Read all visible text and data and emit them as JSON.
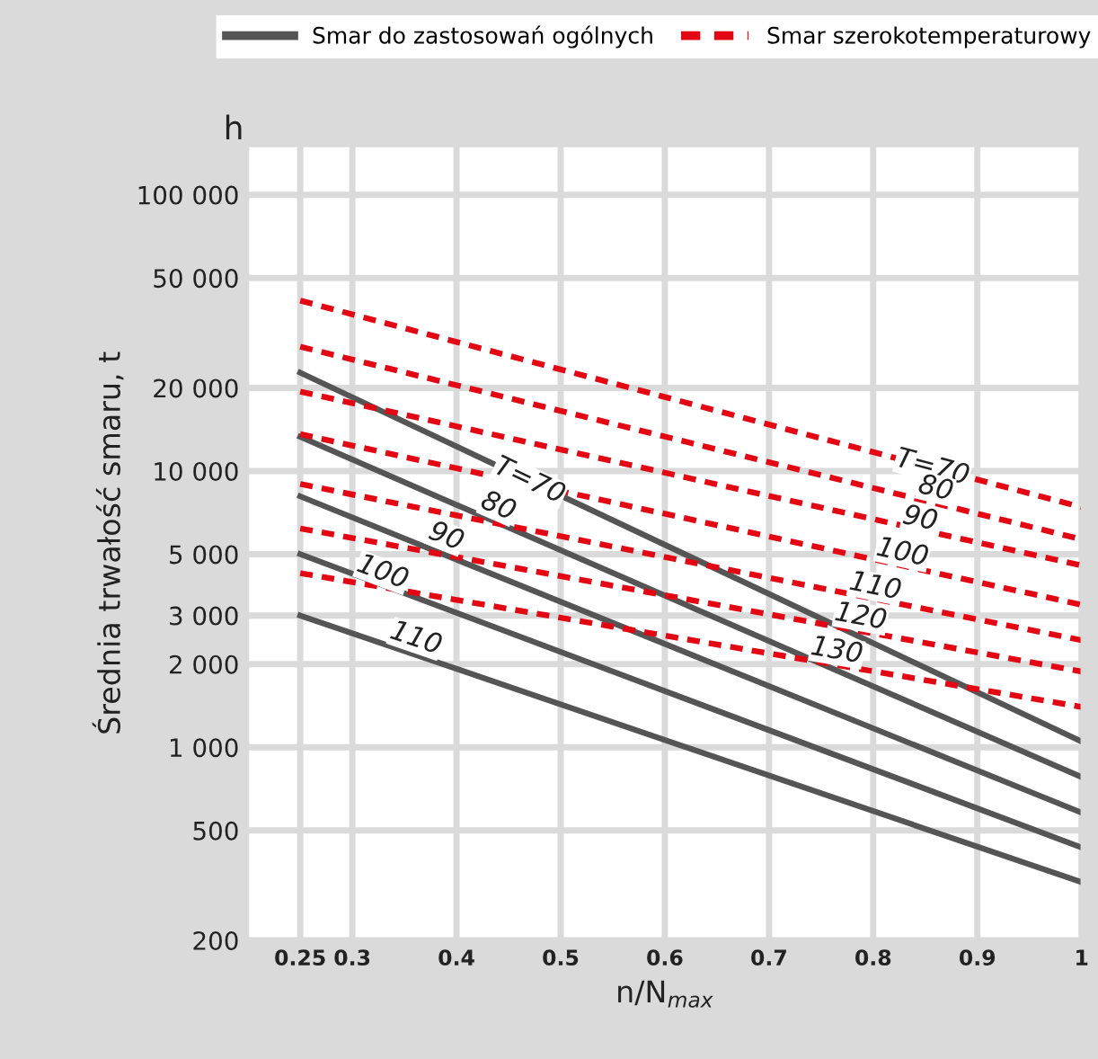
{
  "chart_data": {
    "type": "line",
    "xlabel": "n/N$_{max}$",
    "ylabel": "Średnia trwałość smaru, t",
    "log": "y",
    "grid": true,
    "legend": "top",
    "xlim": [
      0.2,
      1
    ],
    "x": [
      0.25,
      1
    ],
    "ylim": [
      200,
      150000
    ],
    "xticks": [
      0.25,
      0.3,
      0.4,
      0.5,
      0.6,
      0.7,
      0.8,
      0.9,
      1
    ],
    "yticks": [
      {
        "value": 200,
        "label": "200"
      },
      {
        "value": 500,
        "label": "500"
      },
      {
        "value": 1000,
        "label": "1 000"
      },
      {
        "value": 2000,
        "label": "2 000"
      },
      {
        "value": 3000,
        "label": "3 000"
      },
      {
        "value": 5000,
        "label": "5 000"
      },
      {
        "value": 10000,
        "label": "10 000"
      },
      {
        "value": 20000,
        "label": "20 000"
      },
      {
        "value": 50000,
        "label": "50 000"
      },
      {
        "value": 100000,
        "label": "100 000"
      }
    ],
    "series": [
      {
        "name": "Smar do zastosowań ogólnych",
        "color": "#555555",
        "line_style": "solid",
        "values": [
          22700,
          1050
        ]
      },
      {
        "color": "#555555",
        "line_style": "solid",
        "values": [
          13300,
          780
        ]
      },
      {
        "color": "#555555",
        "line_style": "solid",
        "values": [
          8100,
          580
        ]
      },
      {
        "color": "#555555",
        "line_style": "solid",
        "values": [
          5000,
          434
        ]
      },
      {
        "color": "#555555",
        "line_style": "solid",
        "values": [
          3000,
          325
        ]
      },
      {
        "name": "Smar szerokotemperaturowy",
        "color": "#e30613",
        "line_style": "dashed",
        "values": [
          41400,
          7400
        ]
      },
      {
        "color": "#e30613",
        "line_style": "dashed",
        "values": [
          28200,
          5660
        ]
      },
      {
        "color": "#e30613",
        "line_style": "dashed",
        "values": [
          19400,
          4550
        ]
      },
      {
        "color": "#e30613",
        "line_style": "dashed",
        "values": [
          13600,
          3280
        ]
      },
      {
        "color": "#e30613",
        "line_style": "dashed",
        "values": [
          8970,
          2440
        ]
      },
      {
        "color": "#e30613",
        "line_style": "dashed",
        "values": [
          6200,
          1880
        ]
      },
      {
        "color": "#e30613",
        "line_style": "dashed",
        "values": [
          4270,
          1400
        ]
      }
    ],
    "annotations": [
      "h",
      {
        "text": "T=70",
        "x": 0.47,
        "y": 9200
      },
      {
        "text": "80",
        "x": 0.44,
        "y": 7430
      },
      {
        "text": "90",
        "x": 0.39,
        "y": 5770
      },
      {
        "text": "100",
        "x": 0.329,
        "y": 4290
      },
      {
        "text": "110",
        "x": 0.361,
        "y": 2470
      },
      {
        "text": "T=70",
        "x": 0.857,
        "y": 10280
      },
      {
        "text": "80",
        "x": 0.86,
        "y": 8620
      },
      {
        "text": "90",
        "x": 0.845,
        "y": 6700
      },
      {
        "text": "100",
        "x": 0.828,
        "y": 5050
      },
      {
        "text": "110",
        "x": 0.802,
        "y": 3810
      },
      {
        "text": "120",
        "x": 0.788,
        "y": 2960
      },
      {
        "text": "130",
        "x": 0.765,
        "y": 2230
      }
    ]
  }
}
